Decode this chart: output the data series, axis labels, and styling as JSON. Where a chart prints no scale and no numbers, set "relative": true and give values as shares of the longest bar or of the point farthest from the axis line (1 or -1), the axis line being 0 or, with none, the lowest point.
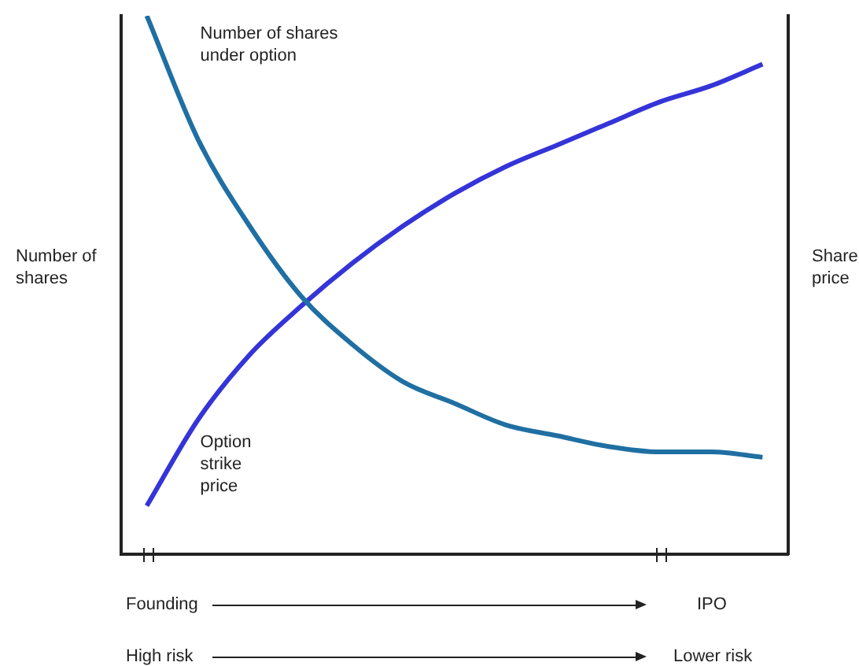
{
  "chart_data": {
    "type": "line",
    "relative": true,
    "ylabel": "Number of shares",
    "y2label": "Share price",
    "categories": [
      null,
      null,
      null,
      null,
      null,
      null,
      null,
      null,
      null,
      null,
      null,
      null,
      null
    ],
    "series": [
      {
        "name": "Number of shares under option",
        "color": "#1f6fa3",
        "values": [
          1,
          0.77,
          0.61,
          0.48,
          0.39,
          0.32,
          0.28,
          0.24,
          0.22,
          0.2,
          0.19,
          0.19,
          0.18
        ]
      },
      {
        "name": "Option strike price",
        "color": "#3434d8",
        "values": [
          0.09,
          0.25,
          0.37,
          0.46,
          0.54,
          0.61,
          0.67,
          0.72,
          0.76,
          0.8,
          0.84,
          0.87,
          0.91
        ]
      }
    ],
    "annotations": [
      "Founding",
      "IPO",
      "High risk",
      "Lower risk"
    ],
    "grid": false,
    "legend": false,
    "marker": "none",
    "line_style": "solid"
  }
}
